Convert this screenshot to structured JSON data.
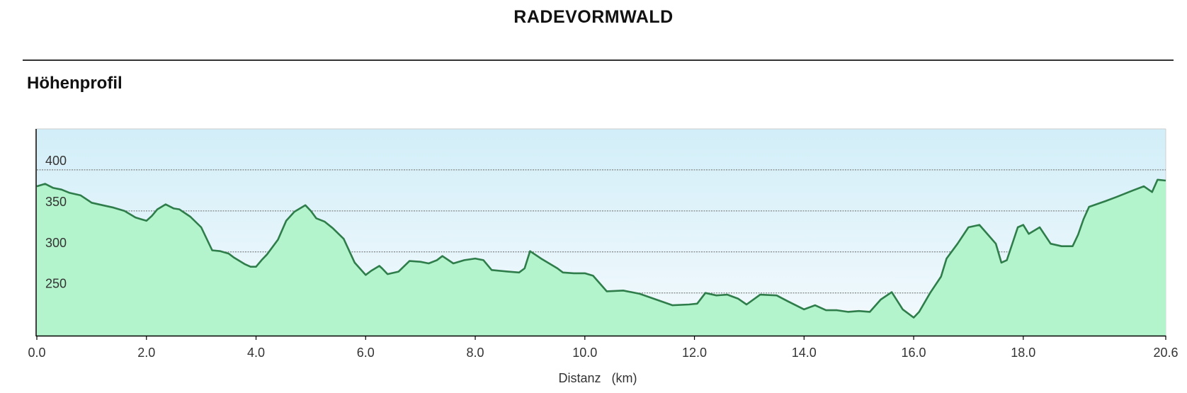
{
  "header": {
    "title": "RADEVORMWALD",
    "section": "Höhenprofil"
  },
  "colors": {
    "line": "#2e7d4a",
    "fill": "#b4f4cc",
    "sky_top": "#d2eef8",
    "sky_bottom": "#f4fafd",
    "grid": "#6b6b6b"
  },
  "chart_data": {
    "type": "area",
    "title": "",
    "xlabel": "Distanz   (km)",
    "ylabel": "",
    "xlim": [
      0,
      20.6
    ],
    "ylim": [
      198,
      450
    ],
    "x_ticks": [
      0,
      2,
      4,
      6,
      8,
      10,
      12,
      14,
      16,
      18,
      20.6
    ],
    "x_tick_labels": [
      "0.0",
      "2.0",
      "4.0",
      "6.0",
      "8.0",
      "10.0",
      "12.0",
      "14.0",
      "16.0",
      "18.0",
      "20.6"
    ],
    "y_gridlines": [
      250,
      300,
      350,
      400
    ],
    "y_tick_labels": [
      "250",
      "300",
      "350",
      "400"
    ],
    "grid": true,
    "series": [
      {
        "x": [
          0,
          0.15,
          0.3,
          0.45,
          0.6,
          0.8,
          1.0,
          1.2,
          1.4,
          1.6,
          1.8,
          1.9,
          2.0,
          2.1,
          2.2,
          2.35,
          2.5,
          2.6,
          2.8,
          3.0,
          3.2,
          3.35,
          3.5,
          3.6,
          3.8,
          3.9,
          4.0,
          4.1,
          4.2,
          4.4,
          4.55,
          4.7,
          4.9,
          5.0,
          5.1,
          5.25,
          5.4,
          5.6,
          5.8,
          6.0,
          6.1,
          6.25,
          6.3,
          6.4,
          6.6,
          6.8,
          7.0,
          7.15,
          7.3,
          7.4,
          7.6,
          7.8,
          8.0,
          8.15,
          8.3,
          8.6,
          8.8,
          8.9,
          9.0,
          9.2,
          9.5,
          9.6,
          9.8,
          10.0,
          10.15,
          10.4,
          10.7,
          11.0,
          11.3,
          11.6,
          11.9,
          12.05,
          12.2,
          12.4,
          12.6,
          12.8,
          12.95,
          13.2,
          13.5,
          13.7,
          14.0,
          14.2,
          14.4,
          14.6,
          14.8,
          15.0,
          15.2,
          15.4,
          15.6,
          15.8,
          16.0,
          16.1,
          16.3,
          16.5,
          16.6,
          16.8,
          17.0,
          17.2,
          17.5,
          17.6,
          17.7,
          17.9,
          18.0,
          18.1,
          18.3,
          18.5,
          18.7,
          18.9,
          19.0,
          19.1,
          19.2,
          19.5,
          19.7,
          20.0,
          20.2,
          20.35,
          20.45,
          20.6
        ],
        "values": [
          380,
          383,
          378,
          376,
          372,
          369,
          360,
          357,
          354,
          350,
          342,
          340,
          338,
          344,
          352,
          358,
          353,
          352,
          343,
          330,
          302,
          301,
          298,
          293,
          285,
          282,
          282,
          290,
          297,
          315,
          338,
          349,
          357,
          350,
          341,
          337,
          329,
          316,
          287,
          272,
          277,
          283,
          280,
          273,
          276,
          289,
          288,
          286,
          290,
          295,
          286,
          290,
          292,
          290,
          278,
          276,
          275,
          280,
          301,
          292,
          280,
          275,
          274,
          274,
          271,
          252,
          253,
          249,
          242,
          235,
          236,
          237,
          250,
          247,
          248,
          243,
          236,
          248,
          247,
          240,
          230,
          235,
          229,
          229,
          227,
          228,
          227,
          242,
          251,
          230,
          220,
          227,
          250,
          270,
          292,
          310,
          330,
          333,
          310,
          287,
          290,
          330,
          333,
          322,
          330,
          310,
          307,
          307,
          321,
          340,
          355,
          362,
          367,
          375,
          380,
          373,
          388,
          387
        ]
      }
    ]
  }
}
